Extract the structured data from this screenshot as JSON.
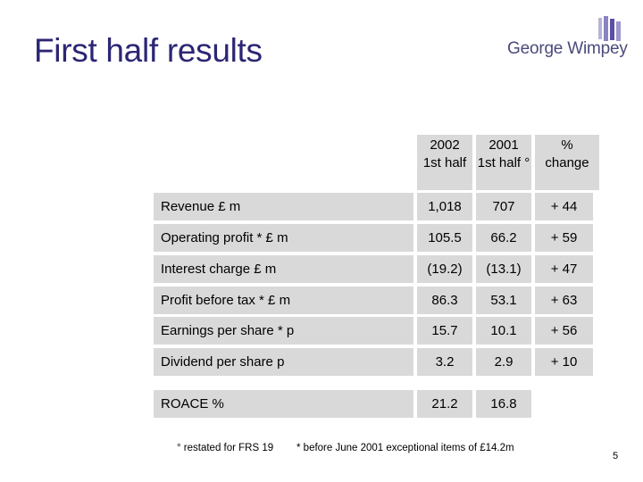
{
  "slide": {
    "title": "First half results",
    "logo_text": "George Wimpey",
    "page_number": "5"
  },
  "table": {
    "columns": [
      {
        "line1": "2002",
        "line2": "1st half"
      },
      {
        "line1": "2001",
        "line2": "1st half °"
      },
      {
        "line1": "%",
        "line2": "change"
      }
    ],
    "rows": [
      {
        "label": "Revenue  £ m",
        "v2002": "1,018",
        "v2001": "707",
        "change": "+ 44"
      },
      {
        "label": "Operating profit *  £ m",
        "v2002": "105.5",
        "v2001": "66.2",
        "change": "+ 59"
      },
      {
        "label": "Interest charge   £ m",
        "v2002": "(19.2)",
        "v2001": "(13.1)",
        "change": "+ 47"
      },
      {
        "label": "Profit before tax *  £ m",
        "v2002": "86.3",
        "v2001": "53.1",
        "change": "+ 63"
      },
      {
        "label": "Earnings per share * p",
        "v2002": "15.7",
        "v2001": "10.1",
        "change": "+ 56"
      },
      {
        "label": "Dividend per share   p",
        "v2002": "3.2",
        "v2001": "2.9",
        "change": "+ 10"
      }
    ],
    "roace": {
      "label": "ROACE  %",
      "v2002": "21.2",
      "v2001": "16.8"
    }
  },
  "footnotes": {
    "restated": "° restated for FRS 19",
    "exceptional": "* before June 2001 exceptional items of £14.2m"
  },
  "colors": {
    "title": "#2b2673",
    "cell_fill": "#d9d9d9"
  }
}
